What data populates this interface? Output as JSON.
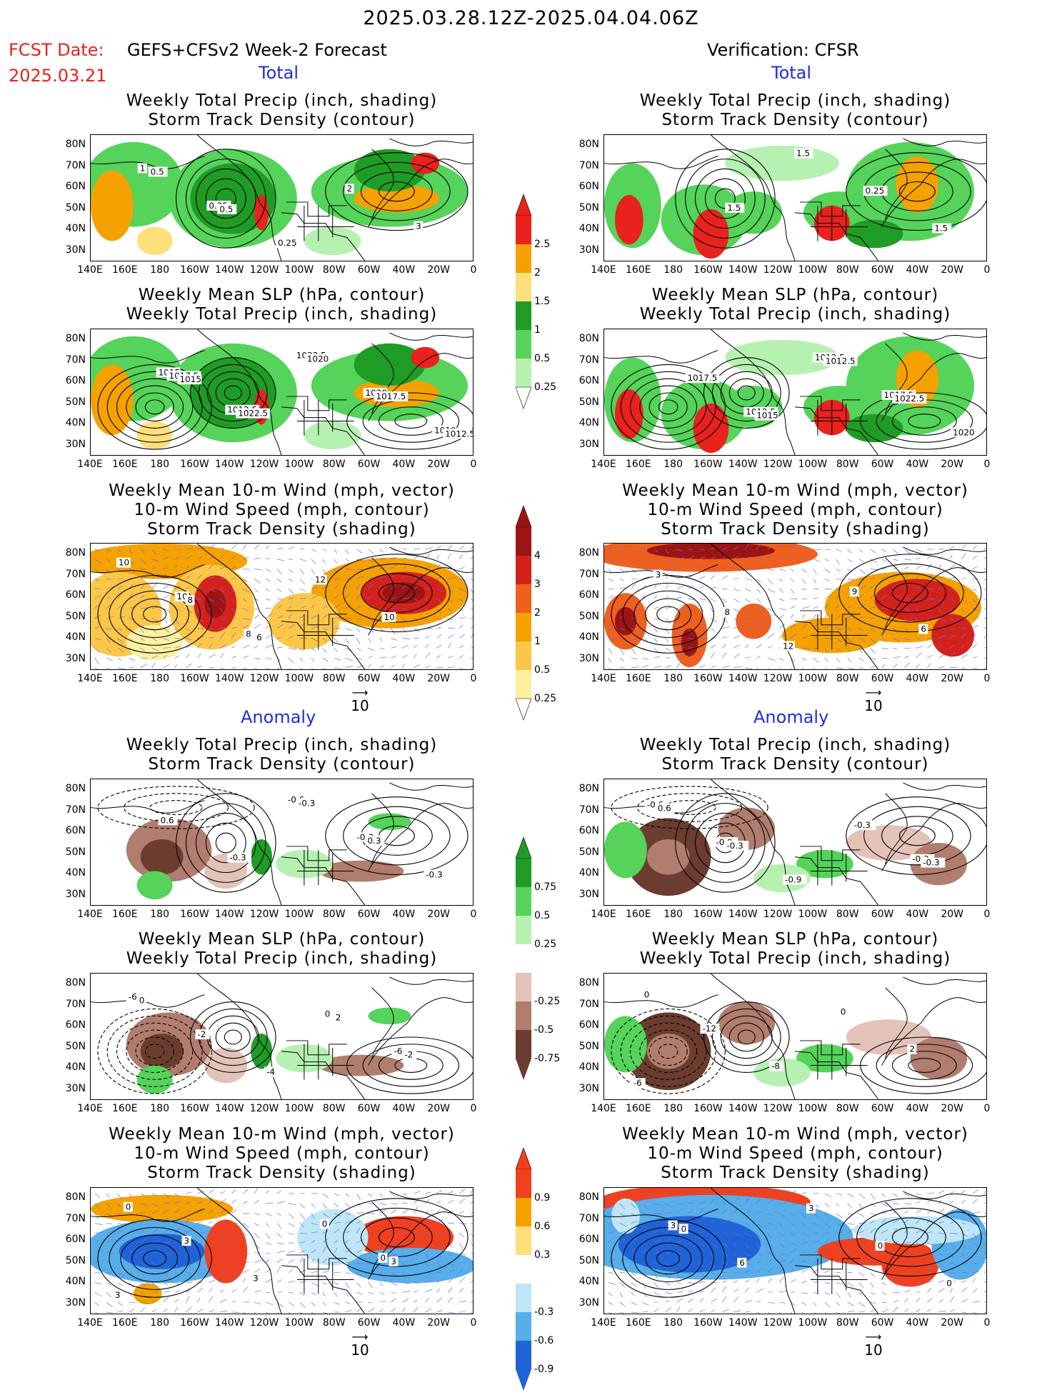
{
  "header": {
    "title": "2025.03.28.12Z-2025.04.04.06Z",
    "fcst_label": "FCST Date:",
    "fcst_model": "GEFS+CFSv2 Week-2 Forecast",
    "fcst_date": "2025.03.21",
    "verification": "Verification: CFSR"
  },
  "sections": {
    "total": "Total",
    "anomaly": "Anomaly"
  },
  "panel_titles": {
    "precip_storm": [
      "Weekly Total Precip (inch, shading)",
      "Storm Track Density (contour)"
    ],
    "slp_precip": [
      "Weekly Mean SLP (hPa, contour)",
      "Weekly Total Precip (inch, shading)"
    ],
    "wind": [
      "Weekly Mean 10-m Wind (mph, vector)",
      "10-m Wind Speed (mph, contour)",
      "Storm Track Density (shading)"
    ]
  },
  "axes": {
    "lat_ticks": [
      "80N",
      "70N",
      "60N",
      "50N",
      "40N",
      "30N"
    ],
    "lon_ticks": [
      "140E",
      "160E",
      "180",
      "160W",
      "140W",
      "120W",
      "100W",
      "80W",
      "60W",
      "40W",
      "20W",
      "0"
    ]
  },
  "vector_reference": "10",
  "colorbars": {
    "precip_total": {
      "labels": [
        "2.5",
        "2",
        "1.5",
        "1",
        "0.5",
        "0.25"
      ],
      "colors": [
        "#e8221d",
        "#f5a100",
        "#fde07c",
        "#1f9c26",
        "#55d35a",
        "#b7f1b2"
      ]
    },
    "storm_total": {
      "labels": [
        "4",
        "3",
        "2",
        "1",
        "0.5",
        "0.25"
      ],
      "colors": [
        "#9b1414",
        "#d3221c",
        "#f0601d",
        "#f5a100",
        "#fcc746",
        "#fdf1a0"
      ]
    },
    "precip_anom": {
      "labels": [
        "0.75",
        "0.5",
        "0.25",
        "-0.25",
        "-0.5",
        "-0.75"
      ],
      "colors": [
        "#1f9c26",
        "#55d35a",
        "#b7f1b2",
        "#e3c2b7",
        "#b07d6e",
        "#6a3d30"
      ]
    },
    "storm_anom": {
      "labels": [
        "0.9",
        "0.6",
        "0.3",
        "-0.3",
        "-0.6",
        "-0.9"
      ],
      "colors": [
        "#f0401d",
        "#f5a100",
        "#fde07c",
        "#bfe6f6",
        "#57aee8",
        "#1f63d6"
      ]
    }
  },
  "map_labels": {
    "fcst_precip_storm": [
      "1",
      "0.25",
      "0.25",
      "2",
      "3",
      "0.5",
      "0.5"
    ],
    "fcst_slp": [
      "1015",
      "1012.5",
      "1022.5",
      "1020",
      "1010",
      "1017.5",
      "1022.5",
      "1020",
      "1017.5",
      "1012.5",
      "1015"
    ],
    "fcst_wind": [
      "10",
      "8",
      "12",
      "10",
      "10",
      "8",
      "6"
    ],
    "obs_precip_storm": [
      "1.5",
      "1.5",
      "0.25",
      "1.5"
    ],
    "obs_slp": [
      "1012.5",
      "1012.5",
      "1017.5",
      "1020",
      "1017.5",
      "1015",
      "1012.5",
      "1022.5"
    ],
    "obs_wind": [
      "12",
      "9",
      "6",
      "3",
      "8"
    ],
    "fcst_precip_anom": [
      "-0.6",
      "-0.3",
      "-0.3",
      "0.6",
      "-0.3",
      "-0.3",
      "0.3"
    ],
    "obs_precip_anom": [
      "-0.3",
      "-0.6",
      "-0.9",
      "-0.9",
      "-0.3",
      "-0.3",
      "0.6",
      "-0.3"
    ],
    "fcst_slp_anom": [
      "0",
      "-6",
      "-6",
      "-2",
      "-4",
      "2",
      "-2",
      "0"
    ],
    "obs_slp_anom": [
      "-6",
      "-12",
      "-8",
      "0",
      "2",
      "0"
    ],
    "fcst_wind_anom": [
      "0",
      "3",
      "3",
      "3",
      "0",
      "3",
      "0"
    ],
    "obs_wind_anom": [
      "3",
      "6",
      "3",
      "0",
      "0",
      "0"
    ]
  }
}
